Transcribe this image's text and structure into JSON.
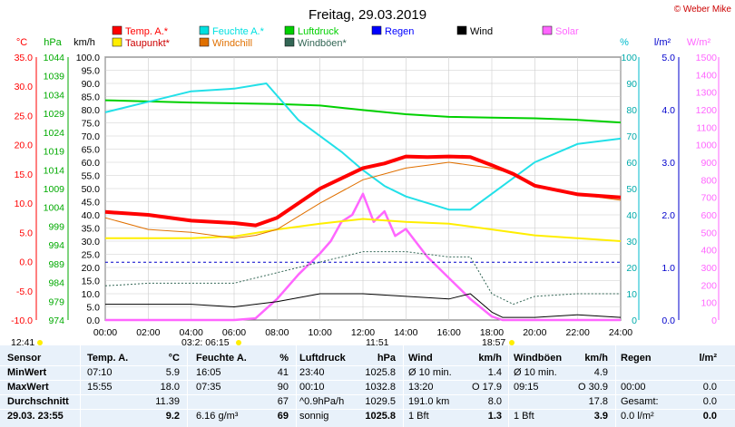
{
  "chart_data": {
    "type": "line",
    "title": "Freitag, 29.03.2019",
    "copyright": "© Weber Mike",
    "x_ticks": [
      "00:00",
      "02:00",
      "04:00",
      "06:00",
      "08:00",
      "10:00",
      "12:00",
      "14:00",
      "16:00",
      "18:00",
      "20:00",
      "22:00",
      "24:00"
    ],
    "legend": [
      {
        "name": "Temp. A.*",
        "color": "#ff0000"
      },
      {
        "name": "Feuchte A.*",
        "color": "#00e0e0"
      },
      {
        "name": "Luftdruck",
        "color": "#00d000"
      },
      {
        "name": "Regen",
        "color": "#0000ff"
      },
      {
        "name": "Wind",
        "color": "#000000"
      },
      {
        "name": "Solar",
        "color": "#ff66ff"
      },
      {
        "name": "Taupunkt*",
        "color": "#ffee00"
      },
      {
        "name": "Windchill",
        "color": "#e07000"
      },
      {
        "name": "Windböen*",
        "color": "#336655"
      }
    ],
    "axes": {
      "temp": {
        "unit": "°C",
        "ticks": [
          "35.0",
          "30.0",
          "25.0",
          "20.0",
          "15.0",
          "10.0",
          "5.0",
          "0.0",
          "-5.0",
          "-10.0"
        ],
        "range": [
          -10,
          35
        ]
      },
      "pressure": {
        "unit": "hPa",
        "ticks": [
          "1044",
          "1039",
          "1034",
          "1029",
          "1024",
          "1019",
          "1014",
          "1009",
          "1004",
          "999",
          "994",
          "989",
          "984",
          "979",
          "974"
        ],
        "range": [
          974,
          1044
        ]
      },
      "wind": {
        "unit": "km/h",
        "ticks": [
          "100.0",
          "95.0",
          "90.0",
          "85.0",
          "80.0",
          "75.0",
          "70.0",
          "65.0",
          "60.0",
          "55.0",
          "50.0",
          "45.0",
          "40.0",
          "35.0",
          "30.0",
          "25.0",
          "20.0",
          "15.0",
          "10.0",
          "5.0",
          "0.0"
        ],
        "range": [
          0,
          100
        ]
      },
      "humidity": {
        "unit": "%",
        "ticks": [
          "100",
          "90",
          "80",
          "70",
          "60",
          "50",
          "40",
          "30",
          "20",
          "10",
          "0"
        ],
        "range": [
          0,
          100
        ]
      },
      "rain": {
        "unit": "l/m²",
        "ticks": [
          "5.0",
          "4.0",
          "3.0",
          "2.0",
          "1.0",
          "0.0"
        ],
        "range": [
          0,
          5
        ]
      },
      "solar": {
        "unit": "W/m²",
        "ticks": [
          "1500",
          "1400",
          "1300",
          "1200",
          "1100",
          "1000",
          "900",
          "800",
          "700",
          "600",
          "500",
          "400",
          "300",
          "200",
          "100",
          "0"
        ],
        "range": [
          0,
          1500
        ]
      }
    },
    "series": [
      {
        "name": "Temp. A.*",
        "axis": "temp",
        "hours": [
          0,
          2,
          4,
          6,
          7,
          8,
          10,
          12,
          13,
          14,
          15,
          16,
          17,
          18,
          19,
          20,
          22,
          24
        ],
        "values": [
          8.5,
          8.0,
          7.0,
          6.6,
          6.2,
          7.5,
          12.5,
          16.0,
          16.8,
          18.0,
          17.9,
          18.0,
          17.9,
          16.5,
          15.0,
          13.0,
          11.5,
          11.0
        ]
      },
      {
        "name": "Taupunkt*",
        "axis": "temp",
        "hours": [
          0,
          4,
          6,
          8,
          10,
          12,
          14,
          16,
          18,
          20,
          22,
          24
        ],
        "values": [
          4.0,
          4.0,
          4.3,
          5.5,
          6.5,
          7.3,
          6.8,
          6.5,
          5.5,
          4.5,
          4.0,
          3.5
        ]
      },
      {
        "name": "Windchill",
        "axis": "temp",
        "hours": [
          0,
          2,
          4,
          6,
          7,
          8,
          10,
          12,
          13,
          14,
          15,
          16,
          17,
          18,
          19,
          20,
          22,
          24
        ],
        "values": [
          7.5,
          5.5,
          5.0,
          4.0,
          4.5,
          5.5,
          10.0,
          14.0,
          15.0,
          16.0,
          16.5,
          17.0,
          16.5,
          16.0,
          15.0,
          13.0,
          11.5,
          10.5
        ]
      },
      {
        "name": "Feuchte A.*",
        "axis": "humidity",
        "hours": [
          0,
          2,
          4,
          6,
          7.5,
          9,
          11,
          12,
          13,
          14,
          16,
          17,
          18,
          20,
          22,
          24
        ],
        "values": [
          79,
          83,
          87,
          88,
          90,
          76,
          64,
          57,
          51,
          47,
          42,
          42,
          48,
          60,
          67,
          69
        ]
      },
      {
        "name": "Luftdruck",
        "axis": "pressure",
        "hours": [
          0,
          4,
          8,
          10,
          12,
          14,
          16,
          18,
          20,
          22,
          24
        ],
        "values": [
          1032.5,
          1031.9,
          1031.5,
          1031.1,
          1029.9,
          1028.8,
          1028.1,
          1027.9,
          1027.7,
          1027.3,
          1026.6
        ]
      },
      {
        "name": "Wind",
        "axis": "wind",
        "hours": [
          0,
          2,
          4,
          6,
          8,
          10,
          12,
          14,
          16,
          17,
          18,
          18.5,
          20,
          22,
          24
        ],
        "values": [
          6,
          6,
          6,
          5,
          7,
          10,
          10,
          9,
          8,
          10,
          3,
          1,
          1,
          2,
          1
        ]
      },
      {
        "name": "Windböen*",
        "axis": "wind",
        "hours": [
          0,
          2,
          4,
          6,
          8,
          10,
          12,
          14,
          16,
          17,
          18,
          19,
          20,
          22,
          24
        ],
        "values": [
          13,
          14,
          14,
          14,
          18,
          22,
          26,
          26,
          24,
          24,
          10,
          6,
          9,
          10,
          10
        ]
      },
      {
        "name": "Solar",
        "axis": "solar",
        "hours": [
          0,
          6,
          7,
          8,
          9,
          10,
          10.5,
          11,
          11.5,
          12,
          12.5,
          13,
          13.5,
          14,
          15,
          16,
          17,
          18,
          18.5,
          24
        ],
        "values": [
          0,
          0,
          10,
          120,
          260,
          380,
          450,
          560,
          600,
          720,
          560,
          620,
          480,
          520,
          360,
          240,
          120,
          20,
          0,
          0
        ]
      }
    ],
    "rain_reference": {
      "axis": "rain",
      "value": 1.1
    },
    "bottom_markers": {
      "left": "12:41",
      "sunrise": "03:2: 06:15",
      "sun_mid": "11:51",
      "sunset": "18:57"
    }
  },
  "table": {
    "header": [
      "Sensor",
      "Temp. A.",
      "°C",
      "Feuchte A.",
      "%",
      "Luftdruck",
      "hPa",
      "Wind",
      "km/h",
      "Windböen",
      "km/h",
      "Regen",
      "l/m²"
    ],
    "rows": [
      {
        "label": "MinWert",
        "cells": [
          "07:10",
          "5.9",
          "16:05",
          "41",
          "23:40",
          "1025.8",
          "Ø 10 min.",
          "1.4",
          "Ø 10 min.",
          "4.9",
          "",
          ""
        ]
      },
      {
        "label": "MaxWert",
        "cells": [
          "15:55",
          "18.0",
          "07:35",
          "90",
          "00:10",
          "1032.8",
          "13:20",
          "O 17.9",
          "09:15",
          "O 30.9",
          "00:00",
          "0.0"
        ]
      },
      {
        "label": "Durchschnitt",
        "cells": [
          "",
          "11.39",
          "",
          "67",
          "^0.9hPa/h",
          "1029.5",
          "191.0 km",
          "8.0",
          "",
          "17.8",
          "Gesamt:",
          "0.0"
        ]
      },
      {
        "label": "29.03. 23:55",
        "cells": [
          "",
          "9.2",
          "6.16 g/m³",
          "69",
          "sonnig",
          "1025.8",
          "1 Bft",
          "1.3",
          "1 Bft",
          "3.9",
          "0.0 l/m²",
          "0.0"
        ]
      }
    ]
  }
}
